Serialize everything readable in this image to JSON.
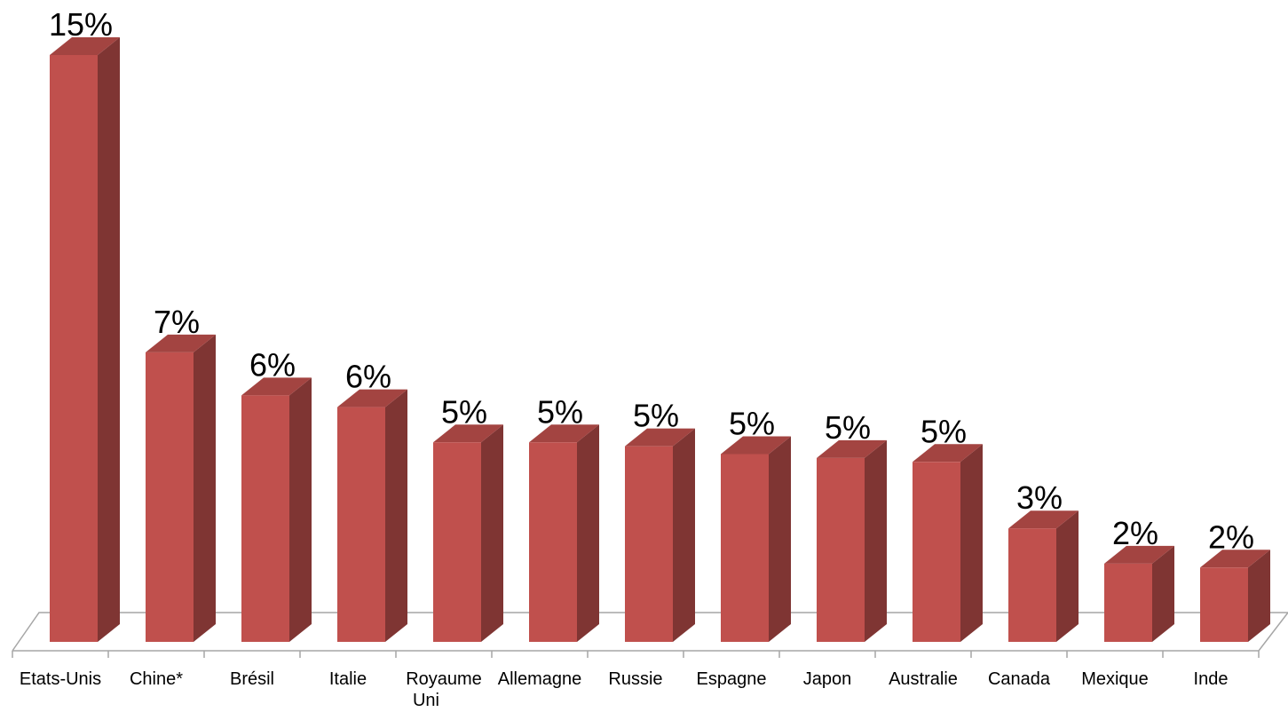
{
  "chart_data": {
    "type": "bar3d",
    "categories": [
      "Etats-Unis",
      "Chine*",
      "Brésil",
      "Italie",
      "Royaume Uni",
      "Allemagne",
      "Russie",
      "Espagne",
      "Japon",
      "Australie",
      "Canada",
      "Mexique",
      "Inde"
    ],
    "values": [
      15.0,
      7.4,
      6.3,
      6.0,
      5.1,
      5.1,
      5.0,
      4.8,
      4.7,
      4.6,
      2.9,
      2.0,
      1.9
    ],
    "value_labels": [
      "15%",
      "7%",
      "6%",
      "6%",
      "5%",
      "5%",
      "5%",
      "5%",
      "5%",
      "5%",
      "3%",
      "2%",
      "2%"
    ],
    "color": "#c0504d",
    "ylim": [
      0,
      15
    ]
  }
}
